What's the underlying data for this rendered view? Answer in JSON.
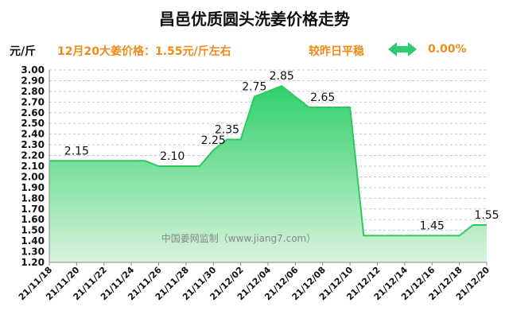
{
  "header": {
    "title": "昌邑优质圆头洗姜价格走势",
    "unit": "元/斤",
    "price_info": "12月20大姜价格：1.55元/斤左右",
    "compare_label": "较昨日平稳",
    "change_pct": "0.00%"
  },
  "watermark": "中国姜网监制（www.jiang7.com）",
  "colors": {
    "line": "#2ec95f",
    "fill_top": "#2fd06a",
    "fill_bottom": "#d8f3dc",
    "accent": "#f08a1a",
    "arrow": "#2ecc71"
  },
  "chart_data": {
    "type": "area",
    "title": "昌邑优质圆头洗姜价格走势",
    "ylabel": "元/斤",
    "ylim": [
      1.2,
      3.0
    ],
    "yticks": [
      "3.00",
      "2.90",
      "2.80",
      "2.70",
      "2.60",
      "2.50",
      "2.40",
      "2.30",
      "2.20",
      "2.10",
      "2.00",
      "1.90",
      "1.80",
      "1.70",
      "1.60",
      "1.50",
      "1.40",
      "1.30",
      "1.20"
    ],
    "xticks": [
      "21/11/18",
      "21/11/20",
      "21/11/22",
      "21/11/24",
      "21/11/26",
      "21/11/28",
      "21/11/30",
      "21/12/02",
      "21/12/04",
      "21/12/06",
      "21/12/08",
      "21/12/10",
      "21/12/12",
      "21/12/14",
      "21/12/16",
      "21/12/18",
      "21/12/20"
    ],
    "x": [
      "21/11/18",
      "21/11/19",
      "21/11/20",
      "21/11/21",
      "21/11/22",
      "21/11/23",
      "21/11/24",
      "21/11/25",
      "21/11/26",
      "21/11/27",
      "21/11/28",
      "21/11/29",
      "21/11/30",
      "21/12/01",
      "21/12/02",
      "21/12/03",
      "21/12/04",
      "21/12/05",
      "21/12/06",
      "21/12/07",
      "21/12/08",
      "21/12/09",
      "21/12/10",
      "21/12/11",
      "21/12/12",
      "21/12/13",
      "21/12/14",
      "21/12/15",
      "21/12/16",
      "21/12/17",
      "21/12/18",
      "21/12/19",
      "21/12/20"
    ],
    "values": [
      2.15,
      2.15,
      2.15,
      2.15,
      2.15,
      2.15,
      2.15,
      2.15,
      2.1,
      2.1,
      2.1,
      2.1,
      2.25,
      2.35,
      2.35,
      2.75,
      2.8,
      2.85,
      2.75,
      2.65,
      2.65,
      2.65,
      2.65,
      1.45,
      1.45,
      1.45,
      1.45,
      1.45,
      1.45,
      1.45,
      1.45,
      1.55,
      1.55
    ],
    "data_labels": [
      {
        "x": "21/11/20",
        "text": "2.15"
      },
      {
        "x": "21/11/27",
        "text": "2.10"
      },
      {
        "x": "21/11/30",
        "text": "2.25"
      },
      {
        "x": "21/12/01",
        "text": "2.35"
      },
      {
        "x": "21/12/03",
        "text": "2.75"
      },
      {
        "x": "21/12/05",
        "text": "2.85"
      },
      {
        "x": "21/12/08",
        "text": "2.65"
      },
      {
        "x": "21/12/16",
        "text": "1.45"
      },
      {
        "x": "21/12/20",
        "text": "1.55"
      }
    ],
    "grid": true
  }
}
